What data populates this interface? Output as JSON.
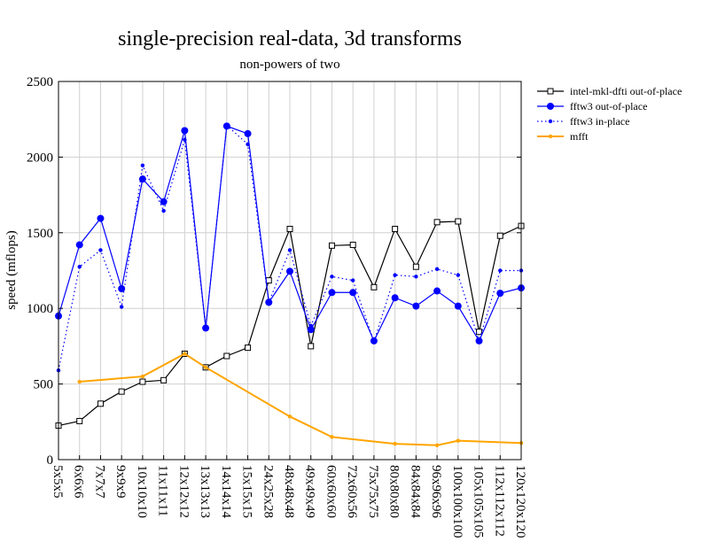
{
  "chart_data": {
    "type": "line",
    "title": "single-precision real-data, 3d transforms",
    "subtitle": "non-powers of two",
    "xlabel": "",
    "ylabel": "speed (mflops)",
    "ylim": [
      0,
      2500
    ],
    "yticks": [
      0,
      500,
      1000,
      1500,
      2000,
      2500
    ],
    "grid": true,
    "legend_position": "right",
    "categories": [
      "5x5x5",
      "6x6x6",
      "7x7x7",
      "9x9x9",
      "10x10x10",
      "11x11x11",
      "12x12x12",
      "13x13x13",
      "14x14x14",
      "15x15x15",
      "24x25x28",
      "48x48x48",
      "49x49x49",
      "60x60x60",
      "72x60x56",
      "75x75x75",
      "80x80x80",
      "84x84x84",
      "96x96x96",
      "100x100x100",
      "105x105x105",
      "112x112x112",
      "120x120x120"
    ],
    "series": [
      {
        "name": "intel-mkl-dfti out-of-place",
        "color": "#000000",
        "marker": "square",
        "dash": "solid",
        "values": [
          225,
          255,
          370,
          450,
          515,
          525,
          700,
          610,
          685,
          740,
          1185,
          1525,
          750,
          1415,
          1420,
          1140,
          1525,
          1275,
          1570,
          1575,
          845,
          1480,
          1545
        ]
      },
      {
        "name": "fftw3 out-of-place",
        "color": "#0000ff",
        "marker": "circle",
        "dash": "solid",
        "values": [
          950,
          1420,
          1595,
          1130,
          1855,
          1705,
          2175,
          870,
          2205,
          2155,
          1040,
          1245,
          860,
          1105,
          1105,
          785,
          1070,
          1015,
          1115,
          1015,
          785,
          1100,
          1135
        ]
      },
      {
        "name": "fftw3 in-place",
        "color": "#0000ff",
        "marker": "dot",
        "dash": "dotted",
        "values": [
          590,
          1275,
          1385,
          1010,
          1945,
          1645,
          2115,
          870,
          2210,
          2085,
          1040,
          1385,
          885,
          1210,
          1185,
          780,
          1220,
          1210,
          1260,
          1220,
          785,
          1250,
          1250
        ]
      },
      {
        "name": "mfft",
        "color": "#ffa500",
        "marker": "dot",
        "dash": "solid",
        "values": [
          null,
          515,
          null,
          null,
          550,
          null,
          700,
          610,
          null,
          null,
          null,
          285,
          null,
          150,
          null,
          null,
          105,
          null,
          95,
          125,
          null,
          null,
          110
        ]
      }
    ]
  }
}
